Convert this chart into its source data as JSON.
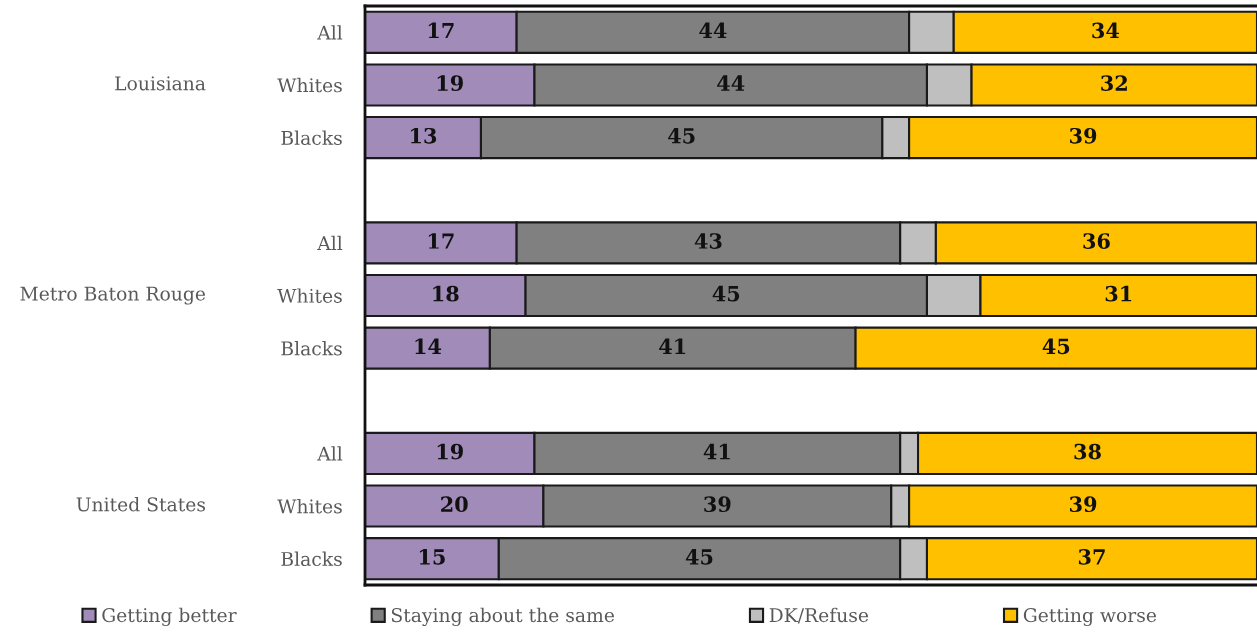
{
  "chart_data": {
    "type": "bar",
    "orientation": "horizontal",
    "stacked": true,
    "categories": [
      "All",
      "Whites",
      "Blacks",
      null,
      "All",
      "Whites",
      "Blacks",
      null,
      "All",
      "Whites",
      "Blacks"
    ],
    "series": [
      {
        "name": "Getting better",
        "color": "#a08bb9",
        "values": [
          17,
          19,
          13,
          null,
          17,
          18,
          14,
          null,
          19,
          20,
          15
        ],
        "value_labels": [
          "17",
          "19",
          "13",
          null,
          "17",
          "18",
          "14",
          null,
          "19",
          "20",
          "15"
        ]
      },
      {
        "name": "Staying about the same",
        "color": "#808080",
        "values": [
          44,
          44,
          45,
          null,
          43,
          45,
          41,
          null,
          41,
          39,
          45
        ],
        "value_labels": [
          "44",
          "44",
          "45",
          null,
          "43",
          "45",
          "41",
          null,
          "41",
          "39",
          "45"
        ]
      },
      {
        "name": "DK/Refuse",
        "color": "#bfbfbf",
        "values": [
          5,
          5,
          3,
          null,
          4,
          6,
          null,
          null,
          2,
          2,
          3
        ]
      },
      {
        "name": "Getting worse",
        "color": "#ffc000",
        "values": [
          34,
          32,
          39,
          null,
          36,
          31,
          45,
          null,
          38,
          39,
          37
        ],
        "value_labels": [
          "34",
          "32",
          "39",
          null,
          "36",
          "31",
          "45",
          null,
          "38",
          "39",
          "37"
        ]
      }
    ],
    "xlim": [
      0,
      100
    ],
    "tick_labels": "y",
    "legend": "bottom",
    "annotations": [
      "Louisiana",
      "Metro Baton Rouge",
      "United States"
    ]
  }
}
